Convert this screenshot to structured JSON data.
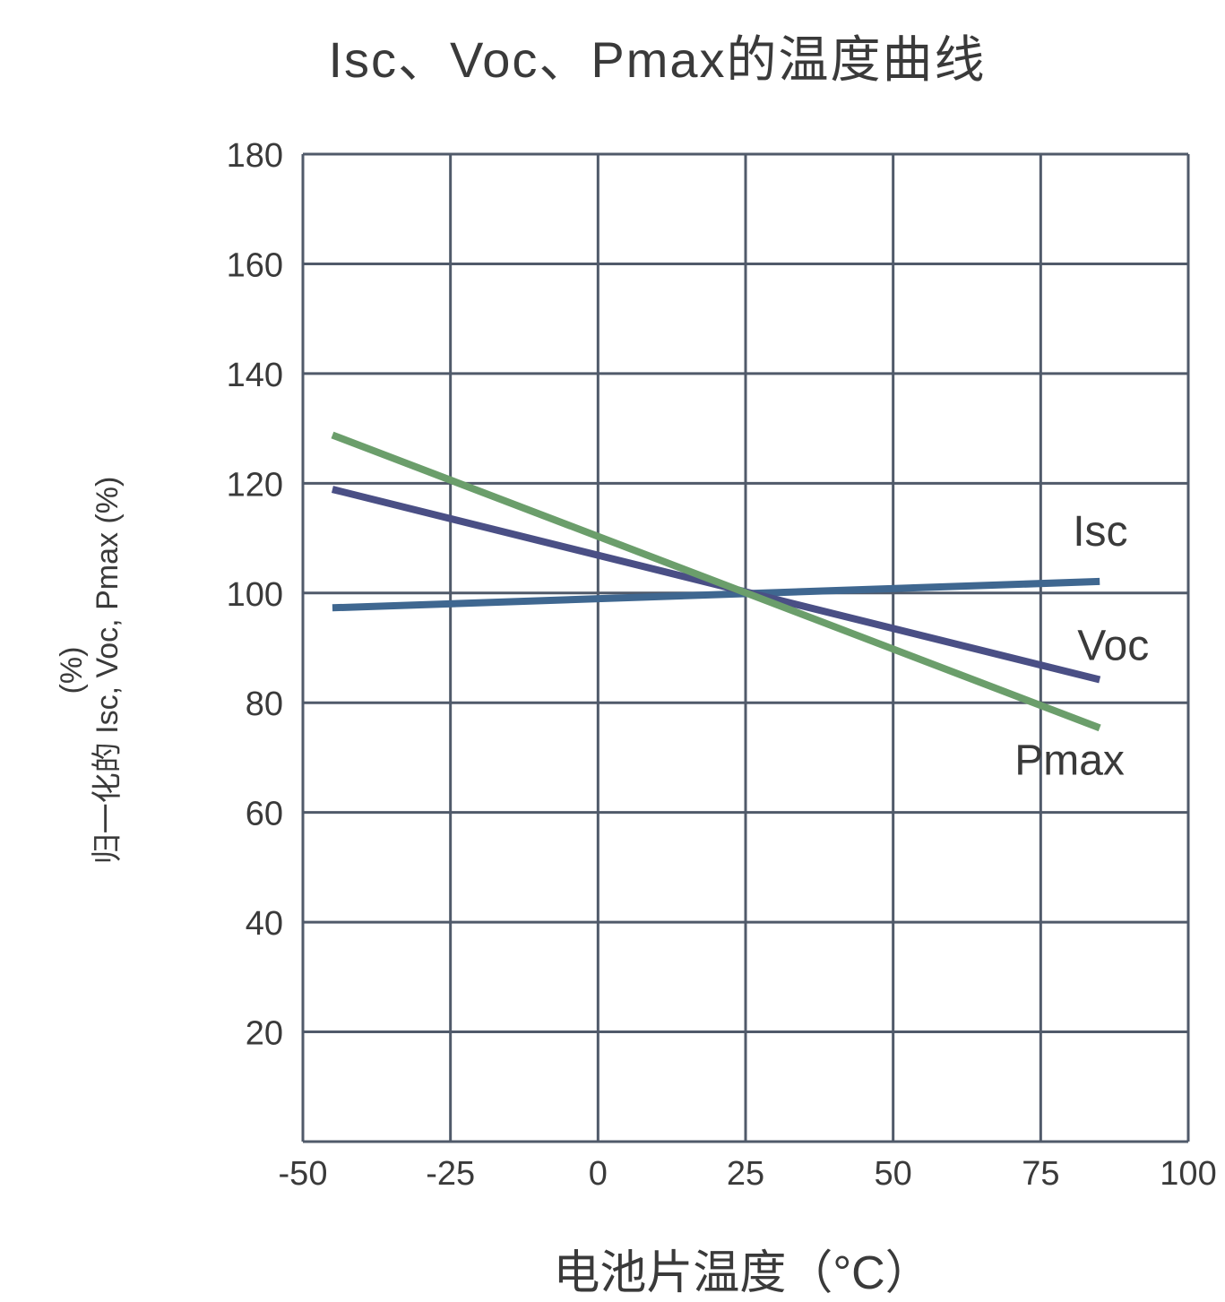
{
  "chart_data": {
    "type": "line",
    "title": "Isc、Voc、Pmax的温度曲线",
    "xlabel": "电池片温度（°C）",
    "ylabel_line1": "(%)",
    "ylabel_line2": "归一化的 Isc, Voc, Pmax (%)",
    "xlim": [
      -50,
      100
    ],
    "ylim": [
      0,
      180
    ],
    "x_ticks": [
      "-50",
      "-25",
      "0",
      "25",
      "50",
      "75",
      "100"
    ],
    "y_ticks": [
      "20",
      "40",
      "60",
      "80",
      "100",
      "120",
      "140",
      "160",
      "180"
    ],
    "grid": true,
    "series": [
      {
        "name": "Isc",
        "color": "#3f6790",
        "x": [
          -45,
          85
        ],
        "y": [
          97.3,
          102.1
        ]
      },
      {
        "name": "Voc",
        "color": "#4a4f85",
        "x": [
          -45,
          85
        ],
        "y": [
          118.9,
          84.2
        ]
      },
      {
        "name": "Pmax",
        "color": "#6b9e6b",
        "x": [
          -45,
          85
        ],
        "y": [
          128.8,
          75.4
        ]
      }
    ]
  }
}
